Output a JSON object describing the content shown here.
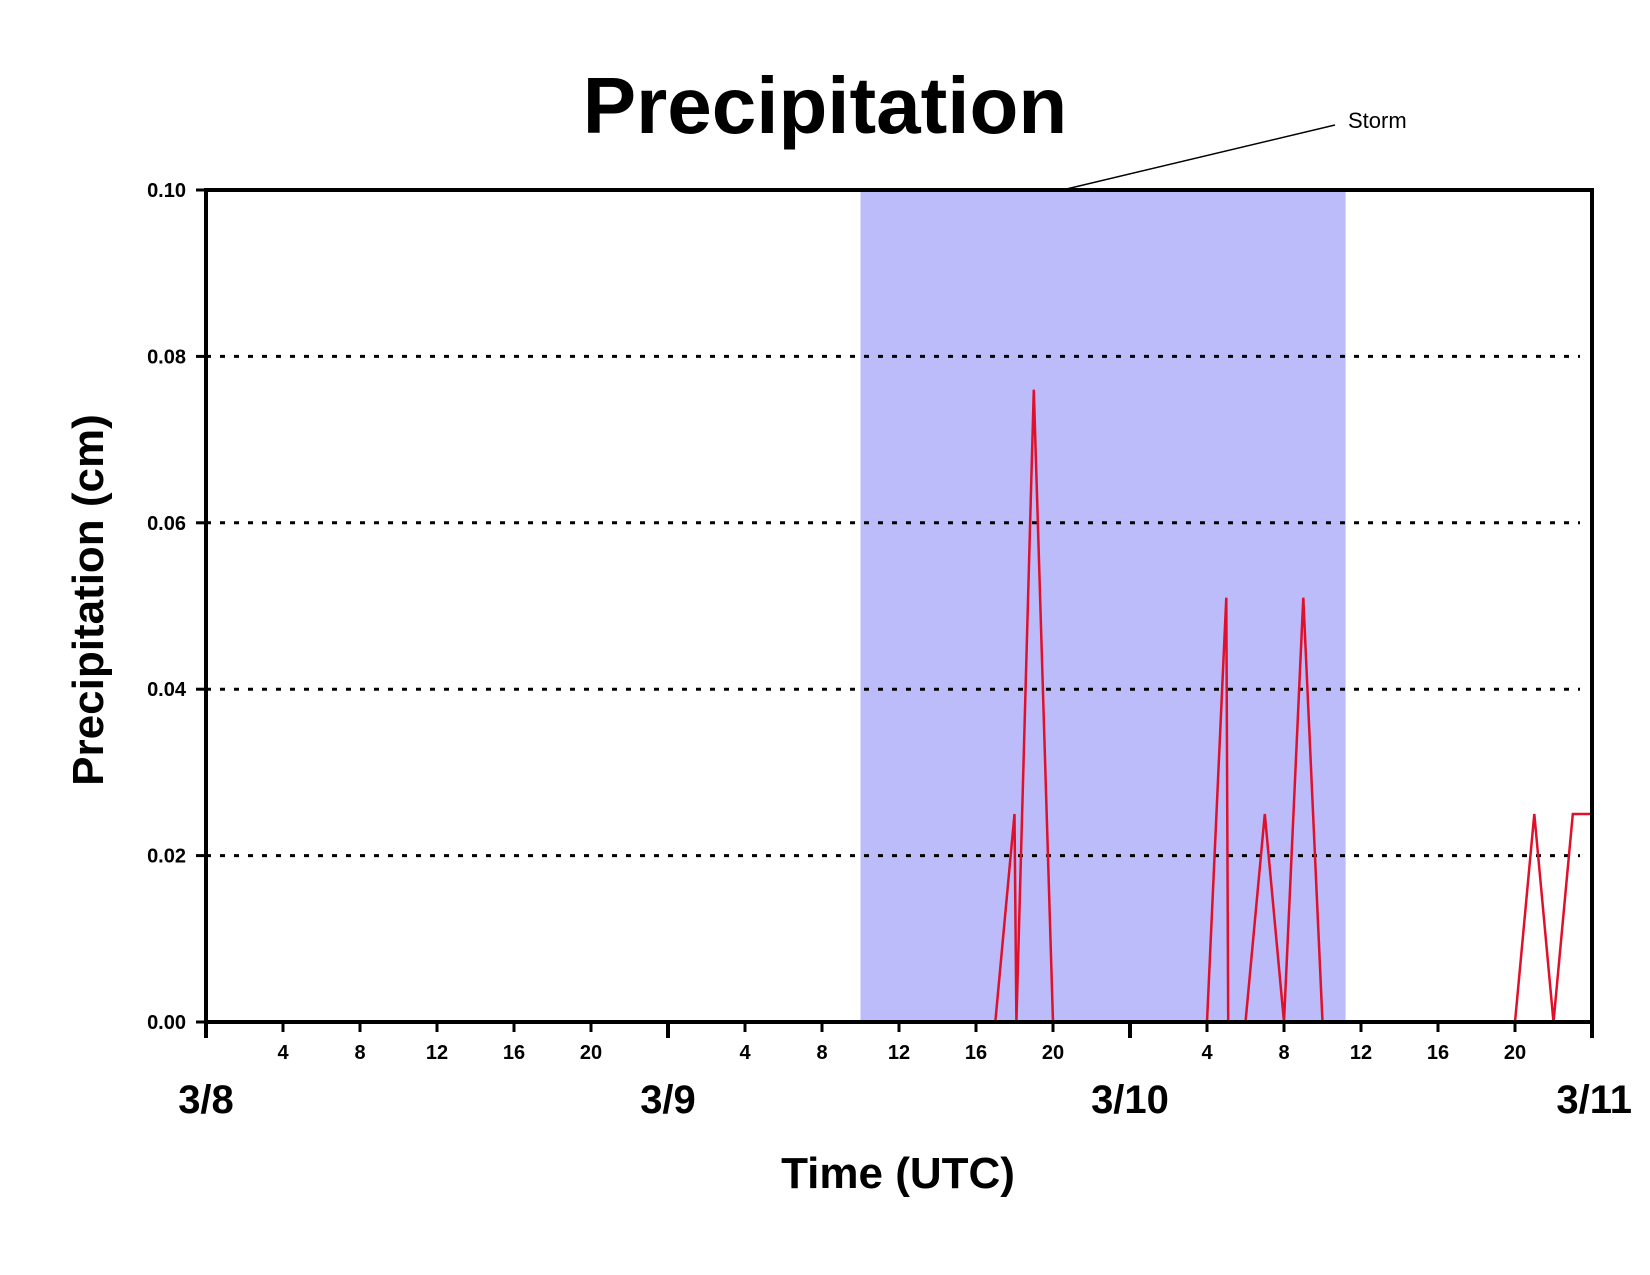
{
  "chart_data": {
    "type": "line",
    "title": "Precipitation",
    "xlabel": "Time (UTC)",
    "ylabel": "Precipitation (cm)",
    "x_unit": "hours since 3/8 00 UTC",
    "xlim": [
      0,
      72
    ],
    "ylim": [
      0,
      0.1
    ],
    "y_ticks": [
      "0.00",
      "0.02",
      "0.04",
      "0.06",
      "0.08",
      "0.10"
    ],
    "grid": "horizontal dotted at 0.02, 0.04, 0.06, 0.08",
    "x_day_labels": [
      {
        "hour": 0,
        "label": "3/8"
      },
      {
        "hour": 24,
        "label": "3/9"
      },
      {
        "hour": 48,
        "label": "3/10"
      },
      {
        "hour": 72,
        "label": "3/11"
      }
    ],
    "x_hour_labels": [
      {
        "hour": 4,
        "label": "4"
      },
      {
        "hour": 8,
        "label": "8"
      },
      {
        "hour": 12,
        "label": "12"
      },
      {
        "hour": 16,
        "label": "16"
      },
      {
        "hour": 20,
        "label": "20"
      },
      {
        "hour": 28,
        "label": "4"
      },
      {
        "hour": 32,
        "label": "8"
      },
      {
        "hour": 36,
        "label": "12"
      },
      {
        "hour": 40,
        "label": "16"
      },
      {
        "hour": 44,
        "label": "20"
      },
      {
        "hour": 52,
        "label": "4"
      },
      {
        "hour": 56,
        "label": "8"
      },
      {
        "hour": 60,
        "label": "12"
      },
      {
        "hour": 64,
        "label": "16"
      },
      {
        "hour": 68,
        "label": "20"
      }
    ],
    "shaded_region": {
      "label": "Storm",
      "x_start": 34,
      "x_end": 59.2,
      "color": "#bcbcfa"
    },
    "series": [
      {
        "color": "#e0102a",
        "x": [
          0,
          41,
          42,
          42.1,
          43,
          44,
          52,
          53,
          53.1,
          54,
          55,
          56,
          57,
          58,
          68,
          69,
          70,
          71,
          72,
          72
        ],
        "y": [
          0,
          0,
          0.025,
          0,
          0.076,
          0,
          0,
          0.051,
          0,
          0,
          0.025,
          0,
          0.051,
          0,
          0,
          0.025,
          0,
          0.025,
          0.025,
          0
        ]
      }
    ]
  }
}
